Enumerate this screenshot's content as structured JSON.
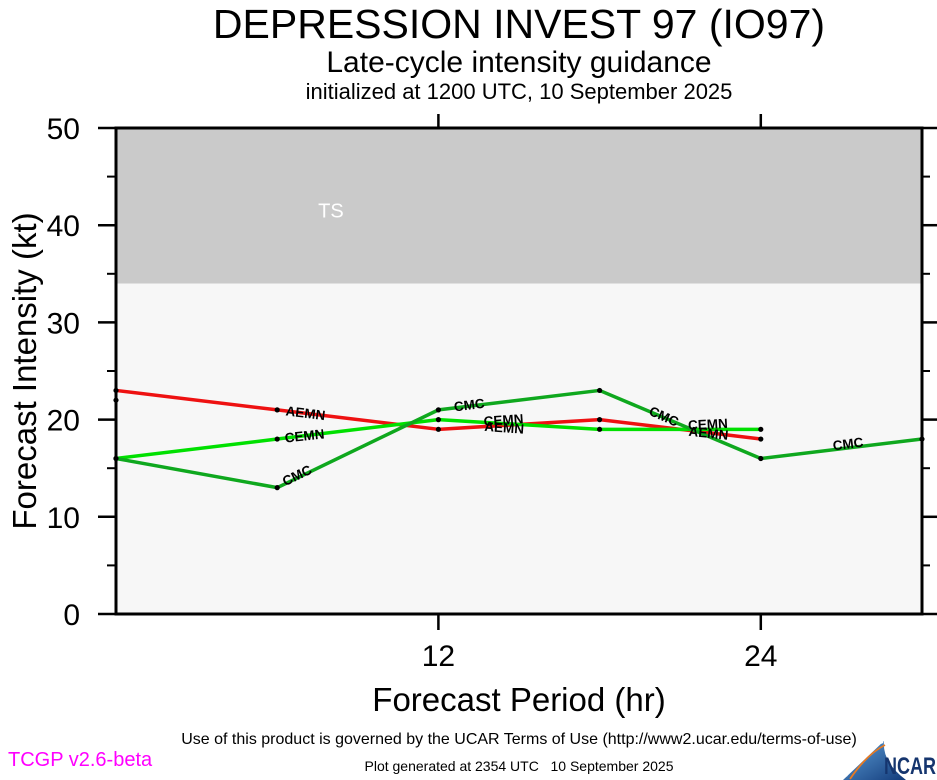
{
  "header": {
    "title": "DEPRESSION INVEST 97 (IO97)",
    "subtitle": "Late-cycle intensity guidance",
    "init_line": "initialized at 1200 UTC, 10 September 2025"
  },
  "footer": {
    "terms": "Use of this product is governed by the UCAR Terms of Use (http://www2.ucar.edu/terms-of-use)",
    "generated": "Plot generated at 2354 UTC   10 September 2025",
    "version": "TCGP v2.6-beta",
    "version_color": "#ff00ff",
    "logo_text": "NCAR",
    "logo_colors": {
      "swoosh_blue_light": "#5ea0d8",
      "swoosh_blue_dark": "#123a7a",
      "arc_orange": "#e87a22",
      "wordmark_blue": "#15356e"
    }
  },
  "chart_data": {
    "type": "line",
    "title": "DEPRESSION INVEST 97 (IO97)",
    "subtitle": "Late-cycle intensity guidance",
    "xlabel": "Forecast Period (hr)",
    "ylabel": "Forecast Intensity (kt)",
    "xlim": [
      0,
      30
    ],
    "ylim": [
      0,
      50
    ],
    "x_major_ticks": [
      12,
      24
    ],
    "y_major_ticks": [
      0,
      10,
      20,
      30,
      40,
      50
    ],
    "y_minor_ticks": [
      5,
      15,
      25,
      35,
      45
    ],
    "grid": false,
    "plot_bg": "#f7f7f7",
    "band": {
      "label": "TS",
      "from": 34,
      "to": 50,
      "color": "#cacaca",
      "label_color": "#ffffff",
      "label_pos": {
        "x": 8.0,
        "y": 41.5
      }
    },
    "series": [
      {
        "name": "AEMN",
        "color": "#ee1111",
        "x": [
          0,
          6,
          12,
          18,
          24
        ],
        "values": [
          23,
          21,
          19,
          20,
          18
        ]
      },
      {
        "name": "CEMN",
        "color": "#00e000",
        "x": [
          0,
          6,
          12,
          18,
          24
        ],
        "values": [
          16,
          18,
          20,
          19,
          19
        ]
      },
      {
        "name": "CMC",
        "color": "#0fa81e",
        "x": [
          0,
          6,
          12,
          18,
          24,
          30
        ],
        "values": [
          16,
          13,
          21,
          23,
          16,
          18
        ]
      }
    ],
    "extra_points": [
      {
        "x": 0,
        "y": 22
      }
    ],
    "line_labels": [
      {
        "text": "AEMN",
        "x": 6.3,
        "y": 20.9,
        "rot": 7
      },
      {
        "text": "CEMN",
        "x": 6.3,
        "y": 18.1,
        "rot": -6
      },
      {
        "text": "CMC",
        "x": 6.3,
        "y": 13.6,
        "rot": -26
      },
      {
        "text": "CMC",
        "x": 12.6,
        "y": 21.3,
        "rot": -7
      },
      {
        "text": "CEMN",
        "x": 13.7,
        "y": 19.8,
        "rot": -4
      },
      {
        "text": "AEMN",
        "x": 13.7,
        "y": 19.3,
        "rot": 4
      },
      {
        "text": "CMC",
        "x": 19.8,
        "y": 21.0,
        "rot": 24
      },
      {
        "text": "CEMN",
        "x": 21.3,
        "y": 19.4,
        "rot": -3
      },
      {
        "text": "AEMN",
        "x": 21.3,
        "y": 18.8,
        "rot": 6
      },
      {
        "text": "CMC",
        "x": 26.7,
        "y": 17.3,
        "rot": -7
      }
    ]
  }
}
